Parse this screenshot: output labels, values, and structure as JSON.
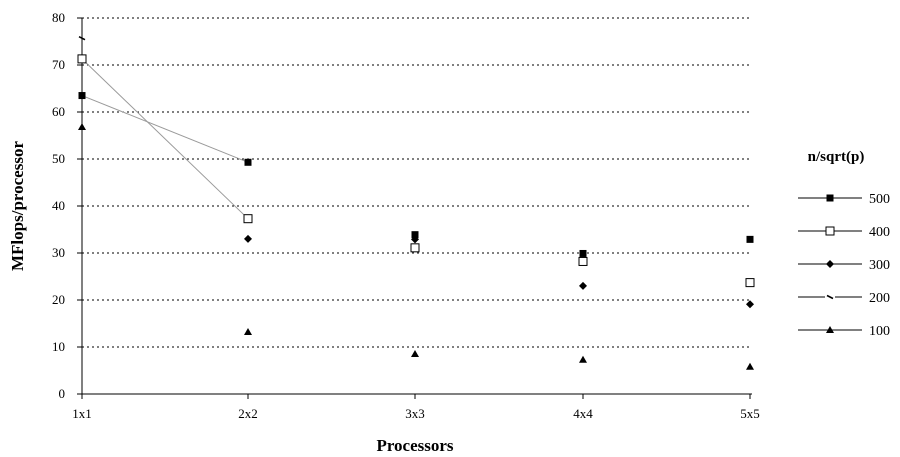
{
  "chart_data": {
    "type": "scatter",
    "title": "",
    "xlabel": "Processors",
    "ylabel": "MFlops/processor",
    "categories": [
      "1x1",
      "2x2",
      "3x3",
      "4x4",
      "5x5"
    ],
    "ylim": [
      0,
      80
    ],
    "yticks": [
      "0",
      "10",
      "20",
      "30",
      "40",
      "50",
      "60",
      "70",
      "80"
    ],
    "grid": "horizontal dotted",
    "legend": {
      "title": "n/sqrt(p)",
      "position": "right"
    },
    "series": [
      {
        "name": "500",
        "marker": "filled-square",
        "values": [
          63.5,
          49.3,
          33.9,
          29.9,
          32.9
        ],
        "line_segment": [
          0,
          1
        ]
      },
      {
        "name": "400",
        "marker": "open-square",
        "values": [
          71.3,
          37.3,
          31.1,
          28.2,
          23.7
        ],
        "line_segment": [
          0,
          1
        ]
      },
      {
        "name": "300",
        "marker": "filled-diamond",
        "values": [
          null,
          33.0,
          32.9,
          23.0,
          19.1
        ]
      },
      {
        "name": "200",
        "marker": "dash",
        "values": [
          75.7,
          null,
          null,
          null,
          null
        ]
      },
      {
        "name": "100",
        "marker": "filled-triangle",
        "values": [
          56.8,
          13.2,
          8.5,
          7.3,
          5.8
        ]
      }
    ]
  }
}
